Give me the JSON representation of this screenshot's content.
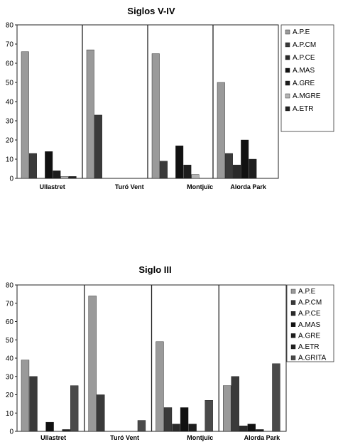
{
  "chart_data": [
    {
      "type": "bar",
      "title": "Siglos V-IV",
      "categories": [
        "Ullastret",
        "Turó Vent",
        "Montjuïc",
        "Alorda Park"
      ],
      "ylim": [
        0,
        80
      ],
      "yticks": [
        0,
        10,
        20,
        30,
        40,
        50,
        60,
        70,
        80
      ],
      "legend_position": "right",
      "series": [
        {
          "name": "A.P.E",
          "color": "#9a9a9a",
          "values": [
            66,
            67,
            65,
            50
          ]
        },
        {
          "name": "A.P.CM",
          "color": "#3a3a3a",
          "values": [
            13,
            33,
            9,
            13
          ]
        },
        {
          "name": "A.P.CE",
          "color": "#2a2a2a",
          "values": [
            0,
            0,
            0,
            7
          ]
        },
        {
          "name": "A.MAS",
          "color": "#111111",
          "values": [
            14,
            0,
            17,
            20
          ]
        },
        {
          "name": "A.GRE",
          "color": "#1e1e1e",
          "values": [
            4,
            0,
            7,
            10
          ]
        },
        {
          "name": "A.MGRE",
          "color": "#b4b4b4",
          "values": [
            1,
            0,
            2,
            0
          ]
        },
        {
          "name": "A.ETR",
          "color": "#222222",
          "values": [
            1,
            0,
            0,
            0
          ]
        }
      ]
    },
    {
      "type": "bar",
      "title": "Siglo III",
      "categories": [
        "Ullastret",
        "Turó Vent",
        "Montjuïc",
        "Alorda Park"
      ],
      "ylim": [
        0,
        80
      ],
      "yticks": [
        0,
        10,
        20,
        30,
        40,
        50,
        60,
        70,
        80
      ],
      "legend_position": "right",
      "series": [
        {
          "name": "A.P.E",
          "color": "#9a9a9a",
          "values": [
            39,
            74,
            49,
            25
          ]
        },
        {
          "name": "A.P.CM",
          "color": "#3a3a3a",
          "values": [
            30,
            20,
            13,
            30
          ]
        },
        {
          "name": "A.P.CE",
          "color": "#2a2a2a",
          "values": [
            0,
            0,
            4,
            3
          ]
        },
        {
          "name": "A.MAS",
          "color": "#111111",
          "values": [
            5,
            0,
            13,
            4
          ]
        },
        {
          "name": "A.GRE",
          "color": "#1e1e1e",
          "values": [
            0,
            0,
            4,
            1
          ]
        },
        {
          "name": "A.ETR",
          "color": "#222222",
          "values": [
            1,
            0,
            0,
            0
          ]
        },
        {
          "name": "A.GRITA",
          "color": "#4a4a4a",
          "values": [
            25,
            6,
            17,
            37
          ]
        }
      ]
    }
  ]
}
